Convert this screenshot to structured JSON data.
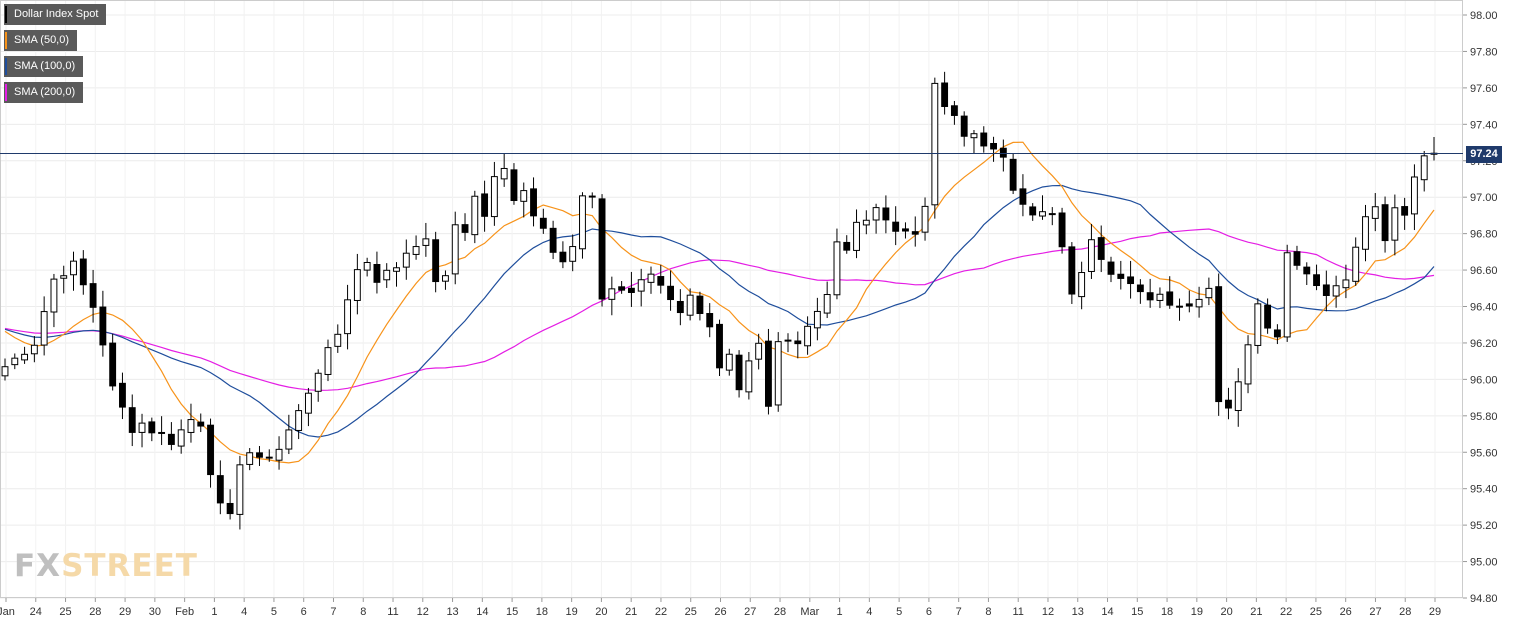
{
  "legend": [
    {
      "label": "Dollar Index Spot",
      "color": "#000000"
    },
    {
      "label": "SMA (50,0)",
      "color": "#f7931a"
    },
    {
      "label": "SMA (100,0)",
      "color": "#1f4e9c"
    },
    {
      "label": "SMA (200,0)",
      "color": "#e41ee4"
    }
  ],
  "watermark": {
    "part1": "FX",
    "part2": "STREET"
  },
  "last_price_label": "97.24",
  "chart_data": {
    "type": "candlestick",
    "series_name": "Dollar Index Spot",
    "ylim": [
      94.8,
      98.0
    ],
    "y_ticks": [
      "98.00",
      "97.80",
      "97.60",
      "97.40",
      "97.20",
      "97.00",
      "96.80",
      "96.60",
      "96.40",
      "96.20",
      "96.00",
      "95.80",
      "95.60",
      "95.40",
      "95.20",
      "95.00",
      "94.80"
    ],
    "x_ticks": [
      "Jan",
      "24",
      "25",
      "28",
      "29",
      "30",
      "Feb",
      "1",
      "4",
      "5",
      "6",
      "7",
      "8",
      "11",
      "12",
      "13",
      "14",
      "15",
      "18",
      "19",
      "20",
      "21",
      "22",
      "25",
      "26",
      "27",
      "28",
      "Mar",
      "1",
      "4",
      "5",
      "6",
      "7",
      "8",
      "11",
      "12",
      "13",
      "14",
      "15",
      "18",
      "19",
      "20",
      "21",
      "22",
      "25",
      "26",
      "27",
      "28",
      "29"
    ],
    "last_price": 97.24,
    "close_path": [
      [
        0,
        96.07
      ],
      [
        3,
        96.2
      ],
      [
        5,
        96.55
      ],
      [
        7,
        96.63
      ],
      [
        9,
        96.4
      ],
      [
        10,
        96.2
      ],
      [
        11,
        95.95
      ],
      [
        13,
        95.73
      ],
      [
        14,
        95.76
      ],
      [
        15,
        95.72
      ],
      [
        16,
        95.7
      ],
      [
        17,
        95.66
      ],
      [
        19,
        95.78
      ],
      [
        20,
        95.76
      ],
      [
        21,
        95.5
      ],
      [
        22,
        95.3
      ],
      [
        23,
        95.24
      ],
      [
        24,
        95.55
      ],
      [
        25,
        95.6
      ],
      [
        26,
        95.55
      ],
      [
        28,
        95.62
      ],
      [
        30,
        95.82
      ],
      [
        32,
        96.05
      ],
      [
        34,
        96.25
      ],
      [
        35,
        96.45
      ],
      [
        36,
        96.6
      ],
      [
        37,
        96.65
      ],
      [
        38,
        96.55
      ],
      [
        40,
        96.62
      ],
      [
        41,
        96.7
      ],
      [
        42,
        96.75
      ],
      [
        43,
        96.75
      ],
      [
        44,
        96.55
      ],
      [
        45,
        96.55
      ],
      [
        46,
        96.85
      ],
      [
        47,
        96.82
      ],
      [
        48,
        97.0
      ],
      [
        49,
        96.9
      ],
      [
        50,
        97.1
      ],
      [
        51,
        97.15
      ],
      [
        52,
        97.0
      ],
      [
        53,
        97.05
      ],
      [
        54,
        96.9
      ],
      [
        55,
        96.85
      ],
      [
        56,
        96.72
      ],
      [
        57,
        96.65
      ],
      [
        58,
        96.72
      ],
      [
        59,
        97.0
      ],
      [
        60,
        96.98
      ],
      [
        61,
        96.45
      ],
      [
        62,
        96.5
      ],
      [
        64,
        96.48
      ],
      [
        66,
        96.58
      ],
      [
        67,
        96.52
      ],
      [
        68,
        96.45
      ],
      [
        69,
        96.38
      ],
      [
        70,
        96.45
      ],
      [
        71,
        96.38
      ],
      [
        72,
        96.3
      ],
      [
        73,
        96.05
      ],
      [
        74,
        96.12
      ],
      [
        75,
        95.92
      ],
      [
        76,
        96.08
      ],
      [
        77,
        96.18
      ],
      [
        78,
        95.84
      ],
      [
        79,
        96.2
      ],
      [
        81,
        96.22
      ],
      [
        83,
        96.38
      ],
      [
        84,
        96.48
      ],
      [
        85,
        96.76
      ],
      [
        86,
        96.7
      ],
      [
        87,
        96.85
      ],
      [
        89,
        96.92
      ],
      [
        90,
        96.9
      ],
      [
        91,
        96.82
      ],
      [
        93,
        96.8
      ],
      [
        94,
        96.97
      ],
      [
        95,
        97.6
      ],
      [
        96,
        97.5
      ],
      [
        97,
        97.43
      ],
      [
        98,
        97.33
      ],
      [
        99,
        97.35
      ],
      [
        101,
        97.25
      ],
      [
        102,
        97.2
      ],
      [
        103,
        97.05
      ],
      [
        105,
        96.92
      ],
      [
        107,
        96.9
      ],
      [
        108,
        96.72
      ],
      [
        109,
        96.45
      ],
      [
        110,
        96.6
      ],
      [
        111,
        96.75
      ],
      [
        113,
        96.6
      ],
      [
        115,
        96.55
      ],
      [
        116,
        96.48
      ],
      [
        117,
        96.42
      ],
      [
        118,
        96.45
      ],
      [
        120,
        96.4
      ],
      [
        122,
        96.45
      ],
      [
        123,
        96.5
      ],
      [
        124,
        95.9
      ],
      [
        125,
        95.85
      ],
      [
        126,
        96.0
      ],
      [
        127,
        96.2
      ],
      [
        128,
        96.4
      ],
      [
        129,
        96.3
      ],
      [
        130,
        96.25
      ],
      [
        131,
        96.72
      ],
      [
        132,
        96.62
      ],
      [
        133,
        96.6
      ],
      [
        134,
        96.52
      ],
      [
        135,
        96.48
      ],
      [
        137,
        96.55
      ],
      [
        138,
        96.75
      ],
      [
        139,
        96.88
      ],
      [
        140,
        96.95
      ],
      [
        141,
        96.75
      ],
      [
        142,
        96.95
      ],
      [
        143,
        96.88
      ],
      [
        144,
        97.1
      ],
      [
        145,
        97.22
      ],
      [
        146,
        97.24
      ]
    ]
  }
}
